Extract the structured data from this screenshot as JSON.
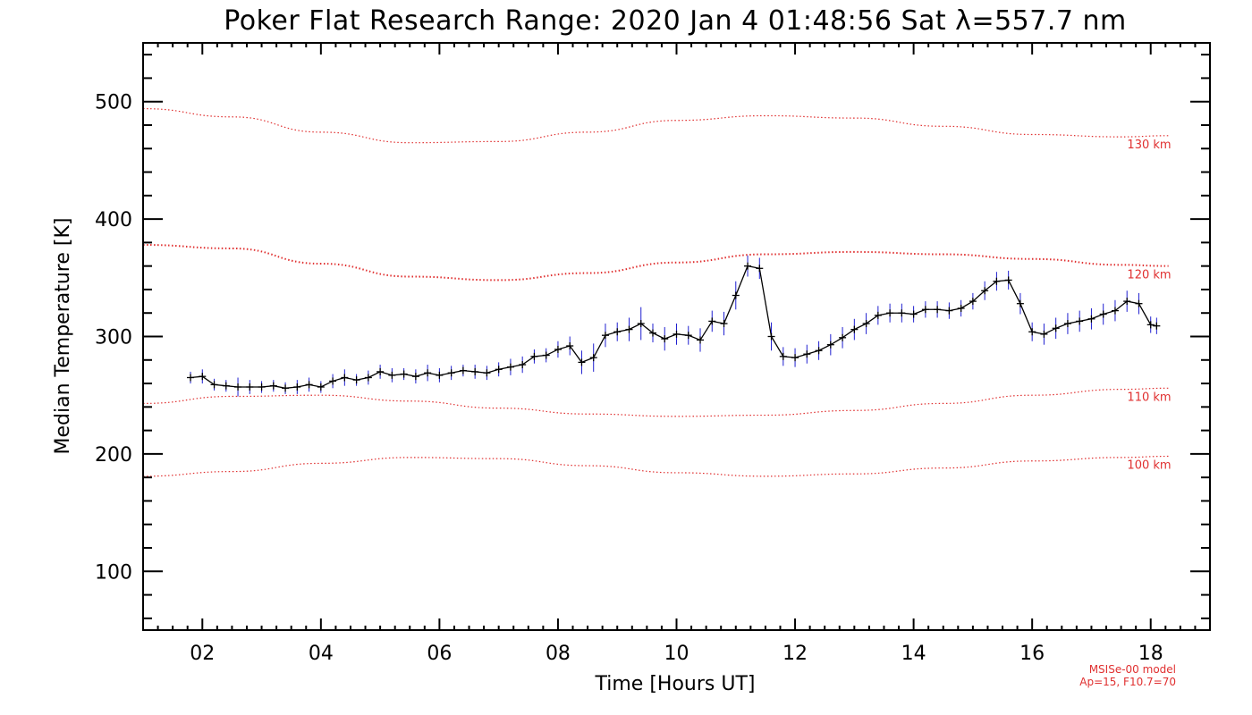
{
  "chart_data": {
    "type": "scatter",
    "title": "Poker Flat Research Range: 2020 Jan  4 01:48:56 Sat λ=557.7 nm",
    "xlabel": "Time [Hours UT]",
    "ylabel": "Median Temperature [K]",
    "xlim": [
      1.0,
      19.0
    ],
    "ylim": [
      50,
      550
    ],
    "x_ticks": [
      2,
      4,
      6,
      8,
      10,
      12,
      14,
      16,
      18
    ],
    "x_tick_labels": [
      "02",
      "04",
      "06",
      "08",
      "10",
      "12",
      "14",
      "16",
      "18"
    ],
    "y_ticks": [
      100,
      200,
      300,
      400,
      500
    ],
    "y_tick_labels": [
      "100",
      "200",
      "300",
      "400",
      "500"
    ],
    "grid": false,
    "colors": {
      "data_line": "#000000",
      "error_bars": "#1f1fd0",
      "model": "#e03030"
    },
    "model_curves": [
      {
        "name": "130 km",
        "x": [
          1.0,
          2.5,
          4.0,
          5.5,
          7.0,
          8.5,
          10.0,
          11.5,
          13.0,
          14.5,
          16.0,
          17.5,
          18.3
        ],
        "y": [
          494,
          487,
          474,
          465,
          466,
          474,
          484,
          488,
          486,
          479,
          472,
          470,
          471
        ]
      },
      {
        "name": "120 km",
        "x": [
          1.0,
          2.5,
          4.0,
          5.5,
          7.0,
          8.5,
          10.0,
          11.5,
          13.0,
          14.5,
          16.0,
          17.5,
          18.3
        ],
        "y": [
          378,
          375,
          362,
          351,
          348,
          354,
          363,
          370,
          372,
          370,
          366,
          361,
          360
        ]
      },
      {
        "name": "110 km",
        "x": [
          1.0,
          2.5,
          4.0,
          5.5,
          7.0,
          8.5,
          10.0,
          11.5,
          13.0,
          14.5,
          16.0,
          17.5,
          18.3
        ],
        "y": [
          243,
          249,
          250,
          245,
          239,
          234,
          232,
          233,
          237,
          243,
          250,
          255,
          256
        ]
      },
      {
        "name": "100 km",
        "x": [
          1.0,
          2.5,
          4.0,
          5.5,
          7.0,
          8.5,
          10.0,
          11.5,
          13.0,
          14.5,
          16.0,
          17.5,
          18.3
        ],
        "y": [
          181,
          185,
          192,
          197,
          196,
          190,
          184,
          181,
          183,
          188,
          194,
          197,
          198
        ]
      }
    ],
    "series": [
      {
        "x": [
          1.8,
          2.0,
          2.2,
          2.4,
          2.6,
          2.8,
          3.0,
          3.2,
          3.4,
          3.6,
          3.8,
          4.0,
          4.2,
          4.4,
          4.6,
          4.8,
          5.0,
          5.2,
          5.4,
          5.6,
          5.8,
          6.0,
          6.2,
          6.4,
          6.6,
          6.8,
          7.0,
          7.2,
          7.4,
          7.6,
          7.8,
          8.0,
          8.2,
          8.4,
          8.6,
          8.8,
          9.0,
          9.2,
          9.4,
          9.6,
          9.8,
          10.0,
          10.2,
          10.4,
          10.6,
          10.8,
          11.0,
          11.2,
          11.4,
          11.6,
          11.8,
          12.0,
          12.2,
          12.4,
          12.6,
          12.8,
          13.0,
          13.2,
          13.4,
          13.6,
          13.8,
          14.0,
          14.2,
          14.4,
          14.6,
          14.8,
          15.0,
          15.2,
          15.4,
          15.6,
          15.8,
          16.0,
          16.2,
          16.4,
          16.6,
          16.8,
          17.0,
          17.2,
          17.4,
          17.6,
          17.8,
          18.0,
          18.1
        ],
        "y": [
          265,
          266,
          259,
          258,
          257,
          257,
          257,
          258,
          256,
          257,
          259,
          257,
          262,
          265,
          263,
          265,
          270,
          267,
          268,
          266,
          269,
          267,
          269,
          271,
          270,
          269,
          272,
          274,
          276,
          283,
          284,
          289,
          292,
          278,
          282,
          301,
          304,
          306,
          311,
          303,
          298,
          302,
          301,
          297,
          313,
          311,
          335,
          360,
          358,
          300,
          283,
          282,
          285,
          288,
          293,
          299,
          306,
          311,
          318,
          320,
          320,
          319,
          323,
          323,
          322,
          324,
          330,
          339,
          347,
          348,
          328,
          304,
          302,
          307,
          311,
          313,
          315,
          319,
          322,
          330,
          328,
          310,
          309
        ],
        "err": [
          5,
          6,
          5,
          5,
          8,
          6,
          5,
          5,
          5,
          6,
          6,
          5,
          6,
          7,
          5,
          6,
          6,
          6,
          5,
          6,
          7,
          6,
          6,
          5,
          6,
          6,
          6,
          7,
          7,
          6,
          6,
          7,
          8,
          10,
          12,
          10,
          8,
          10,
          14,
          8,
          10,
          9,
          8,
          10,
          9,
          10,
          12,
          9,
          9,
          12,
          8,
          8,
          8,
          8,
          9,
          9,
          9,
          9,
          8,
          8,
          8,
          7,
          7,
          7,
          7,
          7,
          7,
          8,
          8,
          8,
          9,
          8,
          9,
          9,
          9,
          9,
          9,
          9,
          9,
          9,
          9,
          7,
          7
        ]
      }
    ],
    "annotations": [
      "MSISe-00 model",
      "Ap=15, F10.7=70"
    ]
  }
}
